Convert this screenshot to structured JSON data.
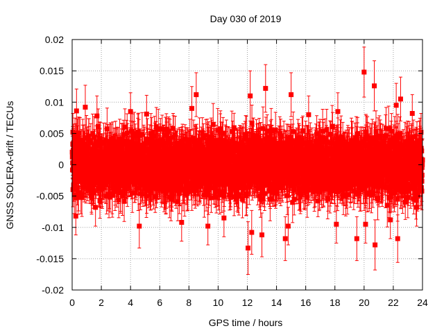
{
  "chart_data": {
    "type": "scatter",
    "title": "Day 030 of 2019",
    "xlabel": "GPS time / hours",
    "ylabel": "GNSS SOLERA-drift / TECUs",
    "xlim": [
      0,
      24
    ],
    "ylim": [
      -0.02,
      0.02
    ],
    "xticks": [
      0,
      2,
      4,
      6,
      8,
      10,
      12,
      14,
      16,
      18,
      20,
      22,
      24
    ],
    "xtick_labels": [
      "0",
      "2",
      "4",
      "6",
      "8",
      "10",
      "12",
      "14",
      "16",
      "18",
      "20",
      "22",
      "24"
    ],
    "yticks": [
      -0.02,
      -0.015,
      -0.01,
      -0.005,
      0,
      0.005,
      0.01,
      0.015,
      0.02
    ],
    "ytick_labels": [
      "-0.02",
      "-0.015",
      "-0.01",
      "-0.005",
      "0",
      "0.005",
      "0.01",
      "0.015",
      "0.02"
    ],
    "grid": true,
    "marker": "square",
    "errorbars": true,
    "color": "#ff0000",
    "series": [
      {
        "name": "SOLERA drift",
        "note": "dense band of ~2900 points, roughly uniform noise within about ±0.006 TECU, error bars about ±0.003 TECU; notable outliers listed below",
        "points": [
          {
            "x": 0.05,
            "y": 0.0052,
            "err": 0.003
          },
          {
            "x": 0.1,
            "y": 0.0035,
            "err": 0.003
          },
          {
            "x": 0.15,
            "y": -0.0048,
            "err": 0.003
          },
          {
            "x": 0.3,
            "y": 0.0086,
            "err": 0.0035
          },
          {
            "x": 0.25,
            "y": -0.0082,
            "err": 0.003
          },
          {
            "x": 0.9,
            "y": 0.0092,
            "err": 0.0035
          },
          {
            "x": 1.7,
            "y": 0.0078,
            "err": 0.0032
          },
          {
            "x": 1.6,
            "y": -0.0068,
            "err": 0.003
          },
          {
            "x": 4.6,
            "y": -0.0098,
            "err": 0.0035
          },
          {
            "x": 4.0,
            "y": 0.0085,
            "err": 0.003
          },
          {
            "x": 5.1,
            "y": 0.0081,
            "err": 0.003
          },
          {
            "x": 7.5,
            "y": -0.0092,
            "err": 0.003
          },
          {
            "x": 8.2,
            "y": 0.009,
            "err": 0.0035
          },
          {
            "x": 8.5,
            "y": 0.0112,
            "err": 0.0035
          },
          {
            "x": 9.3,
            "y": -0.0098,
            "err": 0.003
          },
          {
            "x": 10.4,
            "y": -0.0085,
            "err": 0.003
          },
          {
            "x": 12.05,
            "y": -0.0133,
            "err": 0.0042
          },
          {
            "x": 12.2,
            "y": 0.011,
            "err": 0.004
          },
          {
            "x": 12.3,
            "y": -0.0108,
            "err": 0.0035
          },
          {
            "x": 13.25,
            "y": 0.0122,
            "err": 0.0038
          },
          {
            "x": 13.0,
            "y": -0.0112,
            "err": 0.0035
          },
          {
            "x": 14.6,
            "y": -0.0118,
            "err": 0.0035
          },
          {
            "x": 15.0,
            "y": 0.0112,
            "err": 0.0035
          },
          {
            "x": 14.8,
            "y": -0.0098,
            "err": 0.003
          },
          {
            "x": 16.2,
            "y": 0.008,
            "err": 0.003
          },
          {
            "x": 18.2,
            "y": 0.0085,
            "err": 0.003
          },
          {
            "x": 18.1,
            "y": -0.0095,
            "err": 0.003
          },
          {
            "x": 19.5,
            "y": -0.0118,
            "err": 0.0035
          },
          {
            "x": 20.0,
            "y": 0.0148,
            "err": 0.004
          },
          {
            "x": 20.1,
            "y": -0.0095,
            "err": 0.003
          },
          {
            "x": 20.7,
            "y": 0.0126,
            "err": 0.004
          },
          {
            "x": 20.75,
            "y": -0.0128,
            "err": 0.004
          },
          {
            "x": 21.8,
            "y": -0.0088,
            "err": 0.003
          },
          {
            "x": 22.2,
            "y": 0.0095,
            "err": 0.0035
          },
          {
            "x": 22.3,
            "y": -0.0118,
            "err": 0.0038
          },
          {
            "x": 22.5,
            "y": 0.0105,
            "err": 0.0035
          },
          {
            "x": 23.3,
            "y": 0.0082,
            "err": 0.003
          },
          {
            "x": 23.6,
            "y": -0.0068,
            "err": 0.003
          },
          {
            "x": 23.9,
            "y": 0.0052,
            "err": 0.003
          },
          {
            "x": 23.95,
            "y": -0.0042,
            "err": 0.003
          }
        ]
      }
    ]
  }
}
